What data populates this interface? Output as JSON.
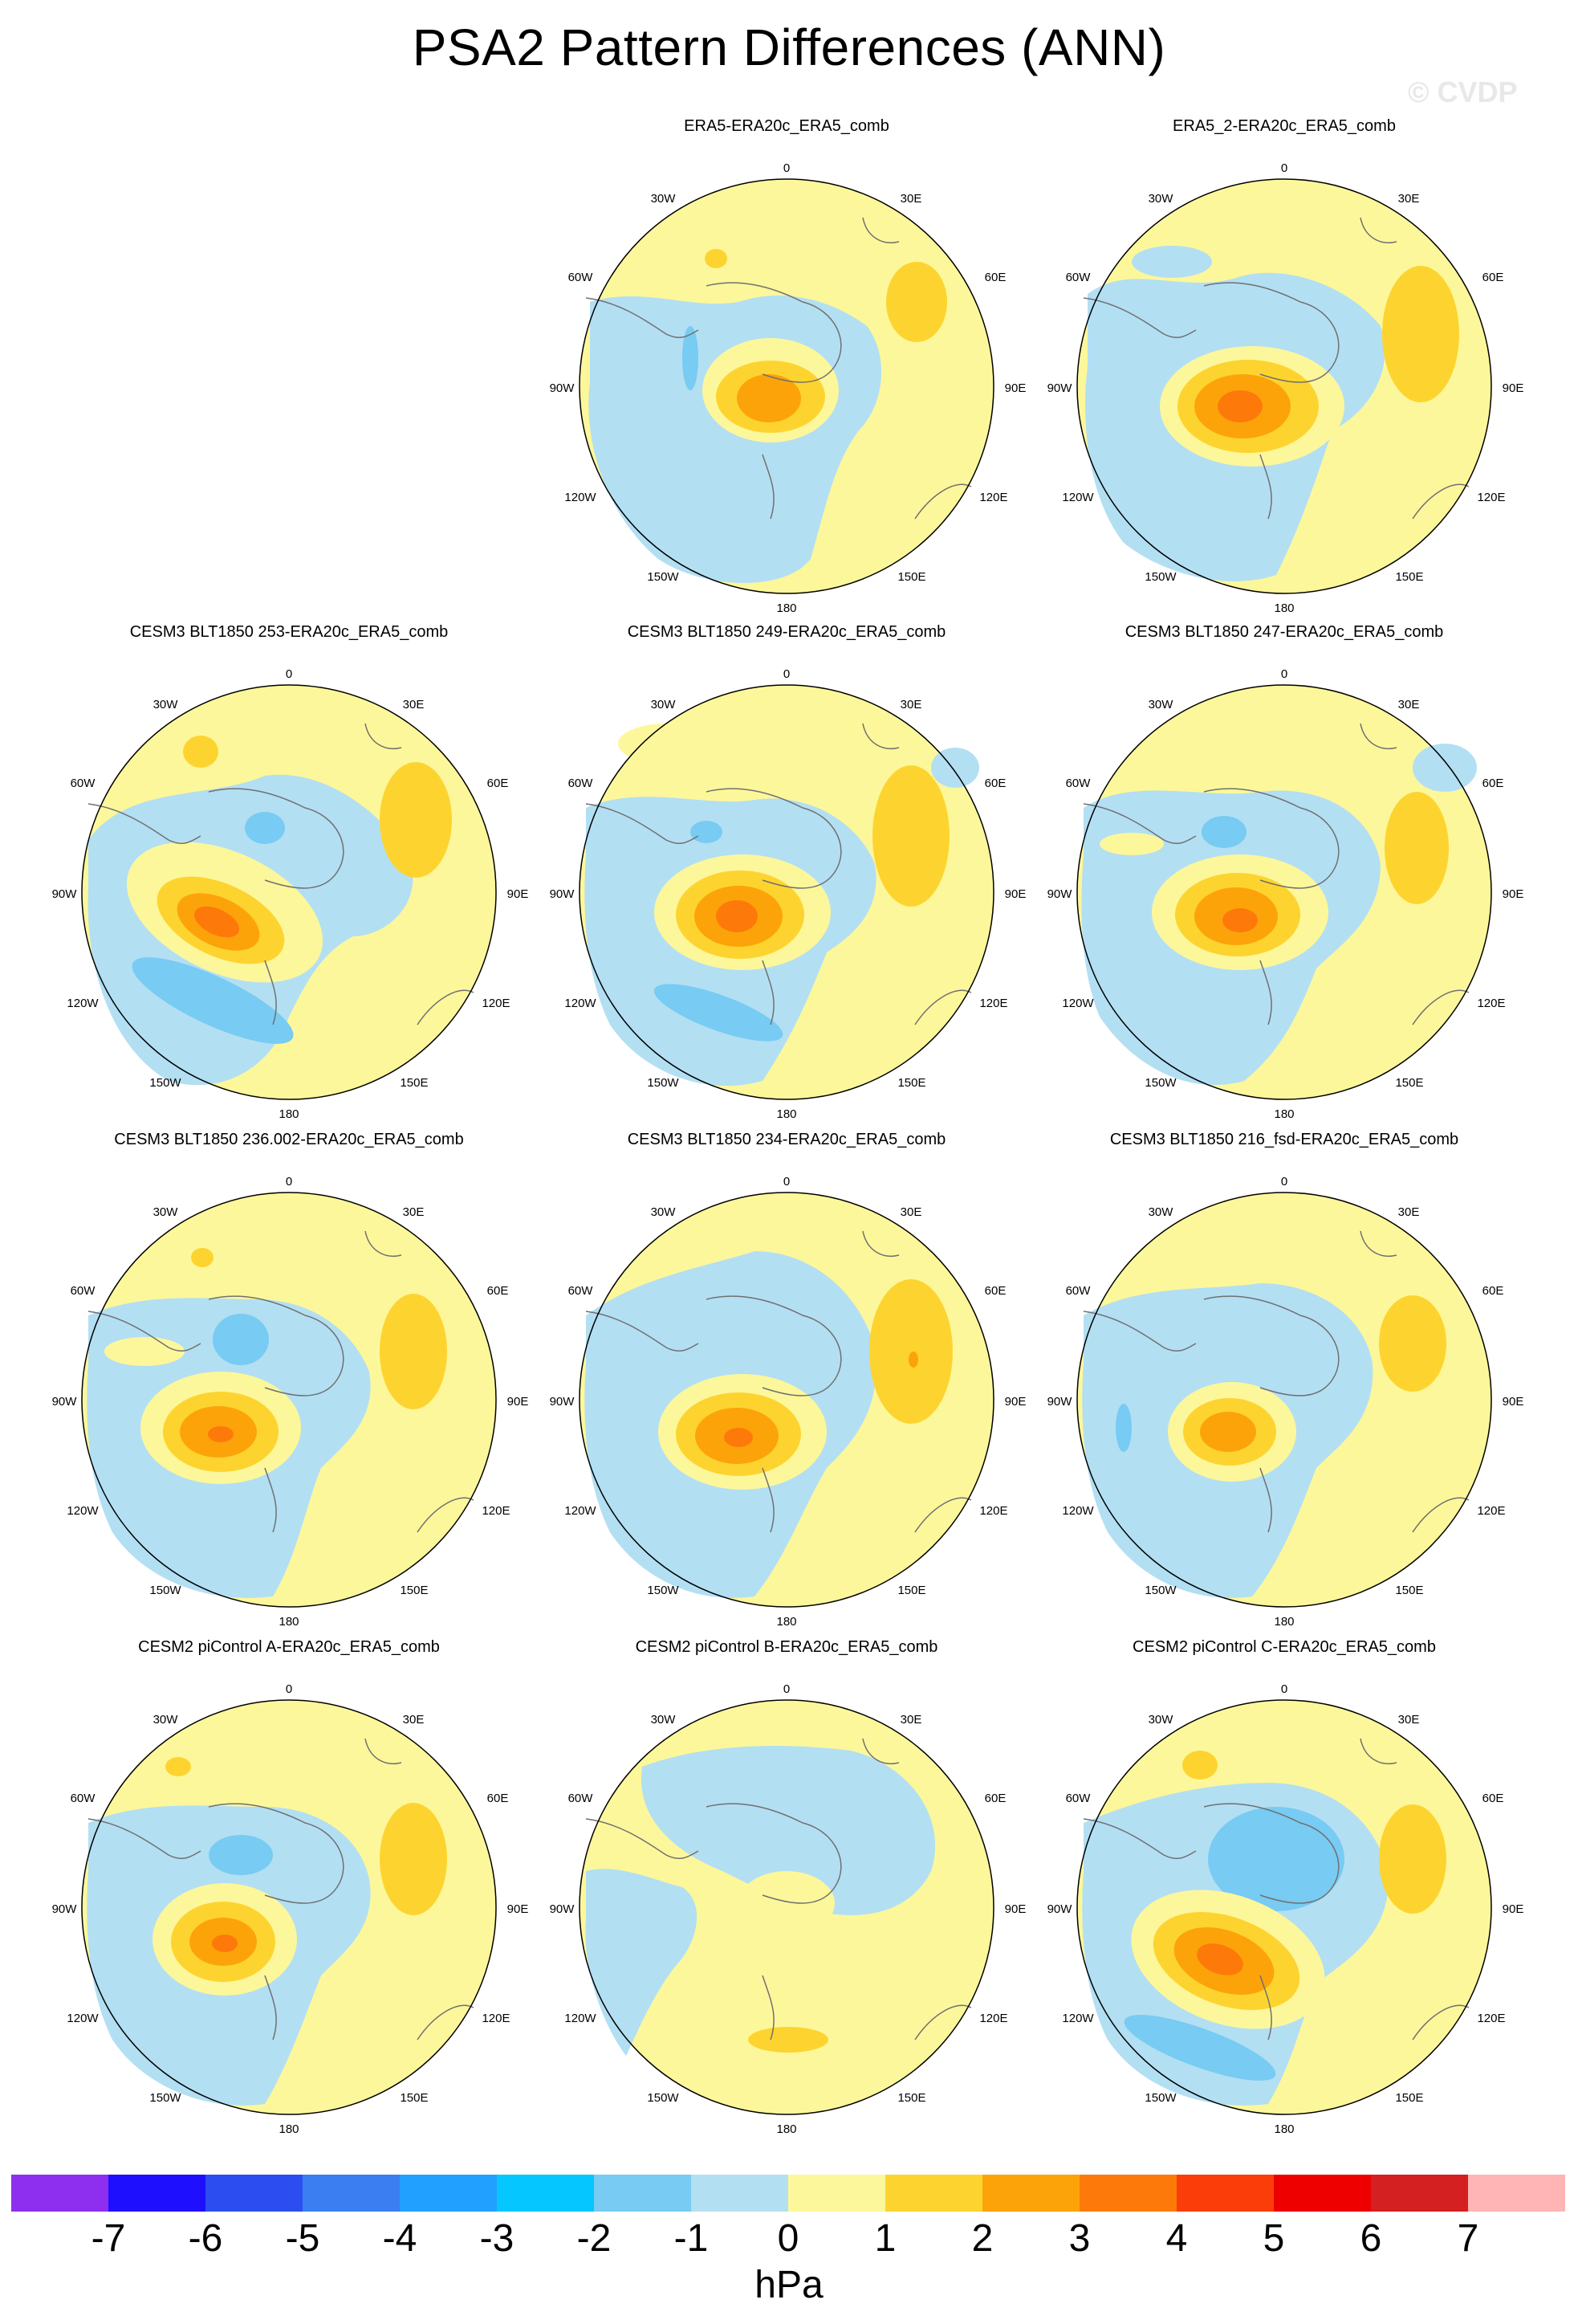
{
  "title": "PSA2 Pattern Differences (ANN)",
  "watermark": "© CVDP",
  "lon_labels": {
    "l0": "0",
    "l30e": "30E",
    "l60e": "60E",
    "l90e": "90E",
    "l120e": "120E",
    "l150e": "150E",
    "l180": "180",
    "l150w": "150W",
    "l120w": "120W",
    "l90w": "90W",
    "l60w": "60W",
    "l30w": "30W"
  },
  "panels": [
    {
      "title": "ERA5-ERA20c_ERA5_comb"
    },
    {
      "title": "ERA5_2-ERA20c_ERA5_comb"
    },
    {
      "title": "CESM3 BLT1850 253-ERA20c_ERA5_comb"
    },
    {
      "title": "CESM3 BLT1850 249-ERA20c_ERA5_comb"
    },
    {
      "title": "CESM3 BLT1850 247-ERA20c_ERA5_comb"
    },
    {
      "title": "CESM3 BLT1850 236.002-ERA20c_ERA5_comb"
    },
    {
      "title": "CESM3 BLT1850 234-ERA20c_ERA5_comb"
    },
    {
      "title": "CESM3 BLT1850 216_fsd-ERA20c_ERA5_comb"
    },
    {
      "title": "CESM2 piControl A-ERA20c_ERA5_comb"
    },
    {
      "title": "CESM2 piControl B-ERA20c_ERA5_comb"
    },
    {
      "title": "CESM2 piControl C-ERA20c_ERA5_comb"
    }
  ],
  "colorbar": {
    "unit": "hPa",
    "colors": [
      "#8e2ff0",
      "#1f0fff",
      "#2c4ef0",
      "#3a7ef2",
      "#22a0ff",
      "#05c6ff",
      "#78cbf2",
      "#b3dff3",
      "#fdf79b",
      "#fdd42f",
      "#fda30a",
      "#fd7a0a",
      "#fb3d0a",
      "#ee0000",
      "#d42020",
      "#ffb5b5"
    ],
    "labels": [
      "-7",
      "-6",
      "-5",
      "-4",
      "-3",
      "-2",
      "-1",
      "0",
      "1",
      "2",
      "3",
      "4",
      "5",
      "6",
      "7"
    ]
  },
  "colors": {
    "positive_light": "#fdf79b",
    "negative_light": "#b3dff3",
    "coast": "#707070"
  }
}
